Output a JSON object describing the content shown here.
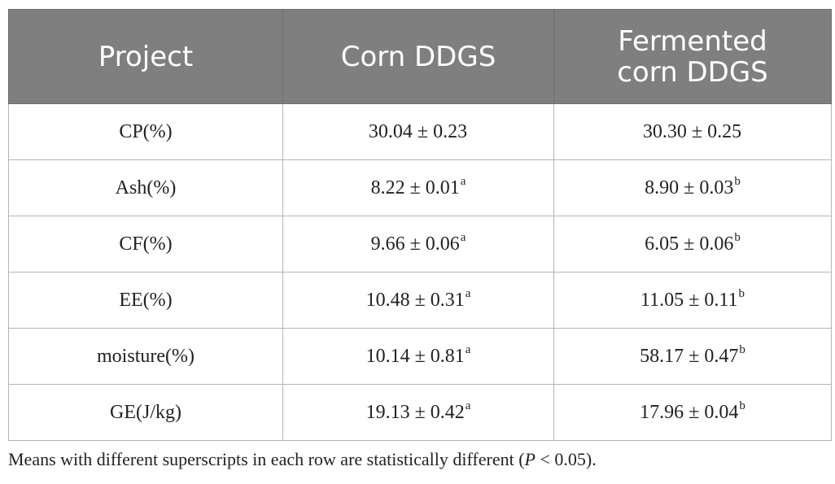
{
  "table": {
    "headers": [
      "Project",
      "Corn DDGS",
      "Fermented corn DDGS"
    ],
    "header_line_split": [
      [
        "Project"
      ],
      [
        "Corn DDGS"
      ],
      [
        "Fermented",
        "corn DDGS"
      ]
    ],
    "rows": [
      {
        "project": "CP(%)",
        "corn": "30.04 ± 0.23",
        "corn_sup": "",
        "fermented": "30.30 ± 0.25",
        "fermented_sup": ""
      },
      {
        "project": "Ash(%)",
        "corn": "8.22 ± 0.01",
        "corn_sup": "a",
        "fermented": "8.90 ± 0.03",
        "fermented_sup": "b"
      },
      {
        "project": "CF(%)",
        "corn": "9.66 ± 0.06",
        "corn_sup": "a",
        "fermented": "6.05 ± 0.06",
        "fermented_sup": "b"
      },
      {
        "project": "EE(%)",
        "corn": "10.48 ± 0.31",
        "corn_sup": "a",
        "fermented": "11.05 ± 0.11",
        "fermented_sup": "b"
      },
      {
        "project": "moisture(%)",
        "corn": "10.14 ± 0.81",
        "corn_sup": "a",
        "fermented": "58.17 ± 0.47",
        "fermented_sup": "b"
      },
      {
        "project": "GE(J/kg)",
        "corn": "19.13 ± 0.42",
        "corn_sup": "a",
        "fermented": "17.96 ± 0.04",
        "fermented_sup": "b"
      }
    ]
  },
  "footnote": {
    "before": "Means with different superscripts in each row are statistically different (",
    "italic": "P",
    "after": " < 0.05)."
  },
  "colors": {
    "header_bg": "#7f7f7f",
    "header_text": "#ffffff",
    "grid": "#b5b5b5"
  }
}
